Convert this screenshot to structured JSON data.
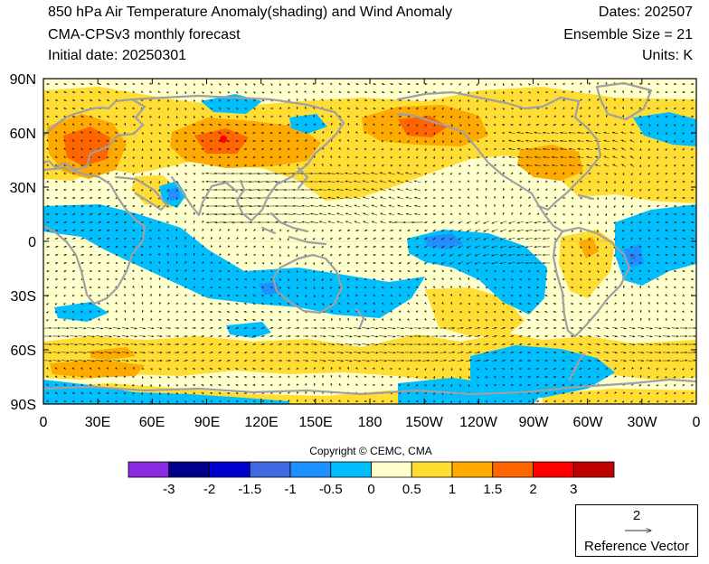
{
  "header": {
    "title": "850 hPa Air Temperature Anomaly(shading) and Wind Anomaly",
    "model": "CMA-CPSv3 monthly forecast",
    "initial_date": "Initial date: 20250301",
    "dates": "Dates: 202507",
    "ensemble": "Ensemble Size = 21",
    "units": "Units: K"
  },
  "axes": {
    "lat_labels": [
      "90N",
      "60N",
      "30N",
      "0",
      "30S",
      "60S",
      "90S"
    ],
    "lon_labels": [
      "0",
      "30E",
      "60E",
      "90E",
      "120E",
      "150E",
      "180",
      "150W",
      "120W",
      "90W",
      "60W",
      "30W",
      "0"
    ]
  },
  "colorbar": {
    "colors": [
      "#8a2be2",
      "#00008b",
      "#0000cd",
      "#4169e1",
      "#1e90ff",
      "#00bfff",
      "#ffffcc",
      "#ffdd33",
      "#ffaa00",
      "#ff6600",
      "#ff0000",
      "#c00000"
    ],
    "tick_labels": [
      "-3",
      "-2",
      "-1.5",
      "-1",
      "-0.5",
      "0",
      "0.5",
      "1",
      "1.5",
      "2",
      "3"
    ]
  },
  "copyright": "Copyright © CEMC, CMA",
  "reference_vector": {
    "value": "2",
    "label": "Reference Vector"
  }
}
